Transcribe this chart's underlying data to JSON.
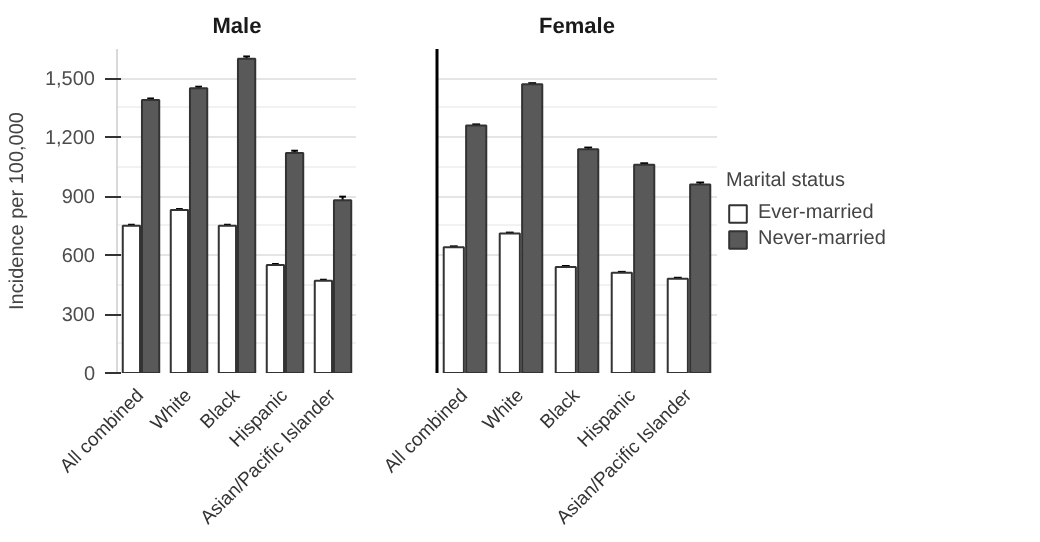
{
  "chart_data": [
    {
      "type": "bar",
      "title": "Male",
      "ylabel": "Incidence per 100,000",
      "categories": [
        "All combined",
        "White",
        "Black",
        "Hispanic",
        "Asian/Pacific Islander"
      ],
      "ylim": [
        0,
        1650
      ],
      "yticks": [
        0,
        {
          "value": 300,
          "label": "300"
        },
        {
          "value": 600,
          "label": "600"
        },
        {
          "value": 900,
          "label": "900"
        },
        {
          "value": 1200,
          "label": "1,200"
        },
        {
          "value": 1500,
          "label": "1,500"
        }
      ],
      "grid": "y",
      "legend": false,
      "series": [
        {
          "color": "#ffffff",
          "values": [
            750,
            830,
            750,
            550,
            470
          ],
          "errors": [
            5,
            5,
            5,
            5,
            5
          ]
        },
        {
          "color": "#595959",
          "values": [
            1390,
            1450,
            1600,
            1120,
            880
          ],
          "errors": [
            8,
            8,
            12,
            12,
            18
          ]
        }
      ]
    },
    {
      "type": "bar",
      "title": "Female",
      "categories": [
        "All combined",
        "White",
        "Black",
        "Hispanic",
        "Asian/Pacific Islander"
      ],
      "ylim": [
        0,
        1650
      ],
      "yticks": [
        0,
        300,
        600,
        900,
        1200,
        1500
      ],
      "grid": "y",
      "legend": "right",
      "legend_title": "Marital status",
      "tick_labels": "x",
      "series": [
        {
          "name": "Ever-married",
          "color": "#ffffff",
          "values": [
            640,
            710,
            540,
            510,
            480
          ],
          "errors": [
            5,
            5,
            5,
            5,
            5
          ]
        },
        {
          "name": "Never-married",
          "color": "#595959",
          "values": [
            1260,
            1470,
            1140,
            1060,
            960
          ],
          "errors": [
            6,
            6,
            8,
            8,
            10
          ]
        }
      ]
    }
  ]
}
